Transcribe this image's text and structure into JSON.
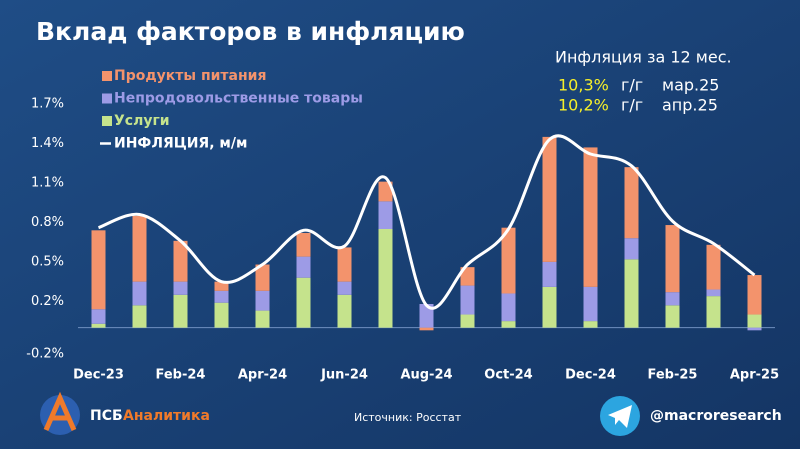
{
  "chart_data": {
    "type": "stacked-bar-line",
    "title": "Вклад факторов в инфляцию",
    "categories": [
      "Dec-23",
      null,
      "Feb-24",
      null,
      "Apr-24",
      null,
      "Jun-24",
      null,
      "Aug-24",
      null,
      "Oct-24",
      null,
      "Dec-24",
      null,
      "Feb-25",
      null,
      "Apr-25"
    ],
    "series": [
      {
        "name": "Услуги",
        "color": "#c5e38c",
        "values": [
          0.03,
          0.17,
          0.25,
          0.19,
          0.13,
          0.38,
          0.25,
          0.75,
          0.0,
          0.1,
          0.05,
          0.31,
          0.05,
          0.52,
          0.17,
          0.24,
          0.1
        ]
      },
      {
        "name": "Непродовольственные товары",
        "color": "#9d9be6",
        "values": [
          0.11,
          0.18,
          0.1,
          0.09,
          0.15,
          0.16,
          0.1,
          0.21,
          0.18,
          0.22,
          0.21,
          0.19,
          0.26,
          0.16,
          0.1,
          0.05,
          -0.02
        ]
      },
      {
        "name": "Продукты питания",
        "color": "#f3936c",
        "values": [
          0.6,
          0.5,
          0.31,
          0.07,
          0.2,
          0.18,
          0.26,
          0.15,
          -0.02,
          0.14,
          0.5,
          0.95,
          1.06,
          0.54,
          0.51,
          0.34,
          0.3
        ]
      }
    ],
    "line": {
      "name": "ИНФЛЯЦИЯ, м/м",
      "color": "#ffffff",
      "values": [
        0.76,
        0.86,
        0.66,
        0.35,
        0.48,
        0.74,
        0.62,
        1.14,
        0.17,
        0.48,
        0.75,
        1.43,
        1.32,
        1.23,
        0.81,
        0.64,
        0.4
      ]
    },
    "ylim": [
      -0.2,
      1.7
    ],
    "yticks": [
      {
        "value": -0.2,
        "label": "-0.2%"
      },
      {
        "value": 0.2,
        "label": "0.2%"
      },
      {
        "value": 0.5,
        "label": "0.5%"
      },
      {
        "value": 0.8,
        "label": "0.8%"
      },
      {
        "value": 1.1,
        "label": "1.1%"
      },
      {
        "value": 1.4,
        "label": "1.4%"
      },
      {
        "value": 1.7,
        "label": "1.7%"
      }
    ],
    "annotation": {
      "title": "Инфляция за 12 мес.",
      "rows": [
        {
          "value": "10,3%",
          "unit": "г/г",
          "period": "мар.25"
        },
        {
          "value": "10,2%",
          "unit": "г/г",
          "period": "апр.25"
        }
      ]
    }
  },
  "footer": {
    "brand": "ПСБ",
    "brand_accent": "Аналитика",
    "source": "Источник: Росстат",
    "channel": "@macroresearch"
  }
}
